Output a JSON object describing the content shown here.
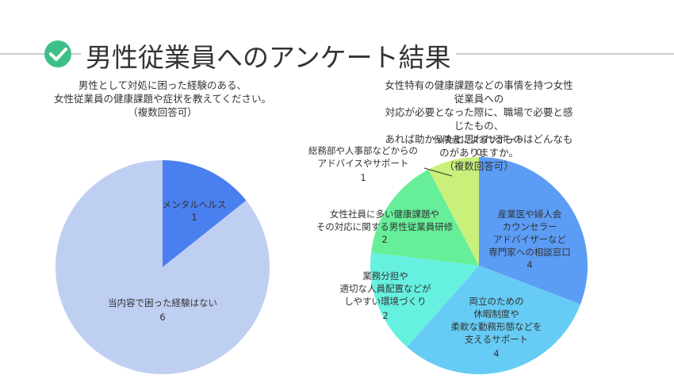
{
  "title": "男性従業員へのアンケート結果",
  "chart_data": [
    {
      "type": "pie",
      "title": "男性として対処に困った経験のある、\n女性従業員の健康課題や症状を教えてください。\n（複数回答可）",
      "categories": [
        "メンタルヘルス",
        "当内容で困った経験はない"
      ],
      "values": [
        1,
        6
      ],
      "colors": [
        "#4a7ff0",
        "#bfcff2"
      ]
    },
    {
      "type": "pie",
      "title": "女性特有の健康課題などの事情を持つ女性従業員への\n対応が必要となった際に、職場で必要と感じたもの、\nあれば助かったと思われるものはどんなものがありますか。\n（複数回答可）",
      "categories": [
        "産業医や婦人会\nカウンセラー\nアドバイザーなど\n専門家への相談窓口",
        "両立のための\n休暇制度や\n柔軟な勤務形態などを\n支えるサポート",
        "業務分担や\n適切な人員配置などが\nしやすい環境づくり",
        "女性社員に多い健康課題や\nその対応に関する男性従業員研修",
        "総務部や人事部などからの\nアドバイスやサポート",
        "保険者によるサポート"
      ],
      "values": [
        4,
        4,
        2,
        2,
        1,
        0
      ],
      "colors": [
        "#5b9cf5",
        "#66ccf5",
        "#66f0e0",
        "#66ee99",
        "#c8f07a",
        "#d8f58a"
      ]
    }
  ]
}
